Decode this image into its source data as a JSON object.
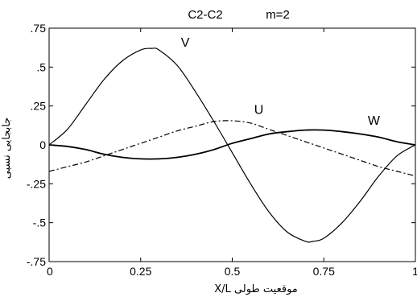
{
  "chart_data": {
    "type": "line",
    "title": "C2-C2",
    "subtitle": "m=2",
    "xlabel": "موقعیت طولی X/L",
    "ylabel": "جابجایی نسبی",
    "xlim": [
      0,
      1
    ],
    "ylim": [
      -0.75,
      0.75
    ],
    "xticks": [
      0,
      0.25,
      0.5,
      0.75,
      1
    ],
    "xtick_labels": [
      "0",
      "0.25",
      "0.5",
      "0.75",
      "1"
    ],
    "yticks": [
      -0.75,
      -0.5,
      -0.25,
      0,
      0.25,
      0.5,
      0.75
    ],
    "ytick_labels": [
      "-.75",
      "-.5",
      "-.25",
      "0",
      ".25",
      ".5",
      ".75"
    ],
    "grid": false,
    "legend": "none",
    "series": [
      {
        "name": "V",
        "style": "solid",
        "x": [
          0,
          0.05,
          0.1,
          0.15,
          0.2,
          0.25,
          0.28,
          0.3,
          0.35,
          0.4,
          0.45,
          0.5,
          0.55,
          0.6,
          0.65,
          0.7,
          0.72,
          0.75,
          0.8,
          0.85,
          0.9,
          0.95,
          1
        ],
        "y": [
          0,
          0.1,
          0.26,
          0.42,
          0.54,
          0.61,
          0.62,
          0.61,
          0.51,
          0.34,
          0.15,
          -0.05,
          -0.25,
          -0.43,
          -0.56,
          -0.62,
          -0.62,
          -0.6,
          -0.5,
          -0.36,
          -0.2,
          -0.07,
          0
        ]
      },
      {
        "name": "U",
        "style": "dashdot",
        "x": [
          0,
          0.05,
          0.1,
          0.15,
          0.2,
          0.25,
          0.3,
          0.35,
          0.4,
          0.45,
          0.5,
          0.55,
          0.6,
          0.65,
          0.7,
          0.75,
          0.8,
          0.85,
          0.9,
          0.95,
          1
        ],
        "y": [
          -0.17,
          -0.14,
          -0.11,
          -0.07,
          -0.03,
          0.01,
          0.05,
          0.09,
          0.12,
          0.15,
          0.155,
          0.14,
          0.1,
          0.06,
          0.02,
          -0.02,
          -0.06,
          -0.1,
          -0.14,
          -0.17,
          -0.2
        ]
      },
      {
        "name": "W",
        "style": "solid",
        "x": [
          0,
          0.05,
          0.1,
          0.15,
          0.2,
          0.25,
          0.3,
          0.35,
          0.4,
          0.45,
          0.5,
          0.55,
          0.6,
          0.65,
          0.7,
          0.75,
          0.8,
          0.85,
          0.9,
          0.95,
          1
        ],
        "y": [
          0,
          -0.01,
          -0.03,
          -0.06,
          -0.08,
          -0.09,
          -0.09,
          -0.08,
          -0.06,
          -0.03,
          0.01,
          0.04,
          0.07,
          0.085,
          0.095,
          0.095,
          0.085,
          0.07,
          0.05,
          0.02,
          0
        ]
      }
    ],
    "series_labels": [
      {
        "text": "V",
        "x": 0.36,
        "y": 0.63
      },
      {
        "text": "U",
        "x": 0.56,
        "y": 0.2
      },
      {
        "text": "W",
        "x": 0.87,
        "y": 0.13
      }
    ]
  }
}
